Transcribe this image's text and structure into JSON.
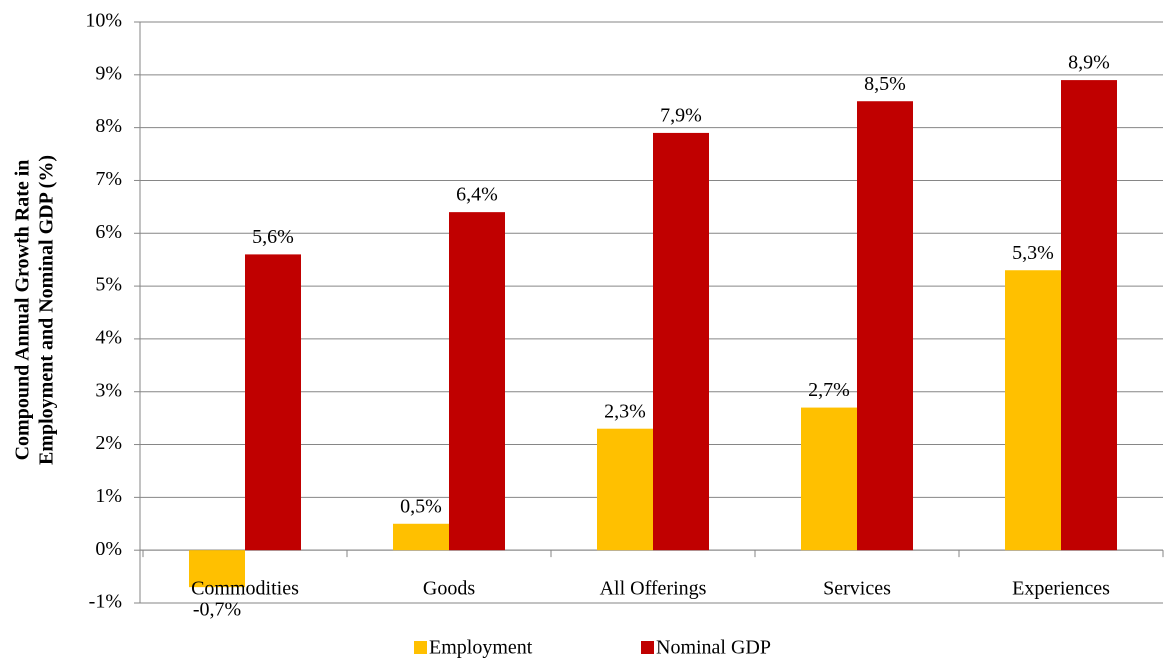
{
  "chart_data": {
    "type": "bar",
    "y_label": [
      "Compound Annual Growth Rate in",
      "Employment and Nominal GDP (%)"
    ],
    "categories": [
      "Commodities",
      "Goods",
      "All Offerings",
      "Services",
      "Experiences"
    ],
    "series": [
      {
        "name": "Employment",
        "color": "#FFC000",
        "values": [
          -0.7,
          0.5,
          2.3,
          2.7,
          5.3
        ],
        "value_labels": [
          "-0,7%",
          "0,5%",
          "2,3%",
          "2,7%",
          "5,3%"
        ]
      },
      {
        "name": "Nominal GDP",
        "color": "#C00000",
        "values": [
          5.6,
          6.4,
          7.9,
          8.5,
          8.9
        ],
        "value_labels": [
          "5,6%",
          "6,4%",
          "7,9%",
          "8,5%",
          "8,9%"
        ]
      }
    ],
    "ylim": [
      -1,
      10
    ],
    "yticks": [
      {
        "value": -1,
        "label": "-1%"
      },
      {
        "value": 0,
        "label": "0%"
      },
      {
        "value": 1,
        "label": "1%"
      },
      {
        "value": 2,
        "label": "2%"
      },
      {
        "value": 3,
        "label": "3%"
      },
      {
        "value": 4,
        "label": "4%"
      },
      {
        "value": 5,
        "label": "5%"
      },
      {
        "value": 6,
        "label": "6%"
      },
      {
        "value": 7,
        "label": "7%"
      },
      {
        "value": 8,
        "label": "8%"
      },
      {
        "value": 9,
        "label": "9%"
      },
      {
        "value": 10,
        "label": "10%"
      }
    ],
    "grid": true,
    "legend": "bottom"
  }
}
